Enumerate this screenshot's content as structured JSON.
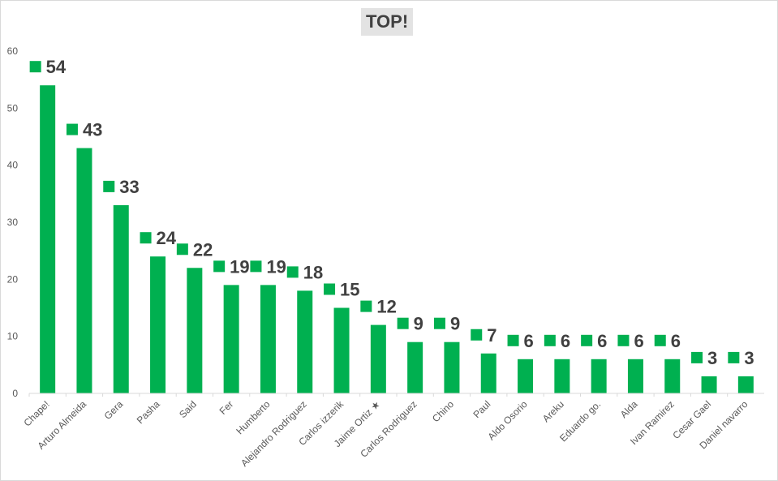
{
  "chart_data": {
    "type": "bar",
    "title": "TOP!",
    "xlabel": "",
    "ylabel": "",
    "ylim": [
      0,
      60
    ],
    "yticks": [
      0,
      10,
      20,
      30,
      40,
      50,
      60
    ],
    "grid": false,
    "categories": [
      "Chape!",
      "Arturo Almeida",
      "Gera",
      "Pasha",
      "Said",
      "Fer",
      "Humberto",
      "Alejandro Rodriguez",
      "Carlos izzerik",
      "Jaime Ortiz ★",
      "Carlos Rodriguez",
      "Chino",
      "Paul",
      "Aldo Osorio",
      "Areku",
      "Eduardo go.",
      "Alda",
      "Ivan Ramirez",
      "Cesar Gael",
      "Daniel navarro"
    ],
    "values": [
      54,
      43,
      33,
      24,
      22,
      19,
      19,
      18,
      15,
      12,
      9,
      9,
      7,
      6,
      6,
      6,
      6,
      6,
      3,
      3
    ],
    "colors": {
      "bar": "#00b050",
      "marker": "#00b050",
      "label": "#404040",
      "axis": "#d9d9d9",
      "tick": "#595959"
    }
  }
}
